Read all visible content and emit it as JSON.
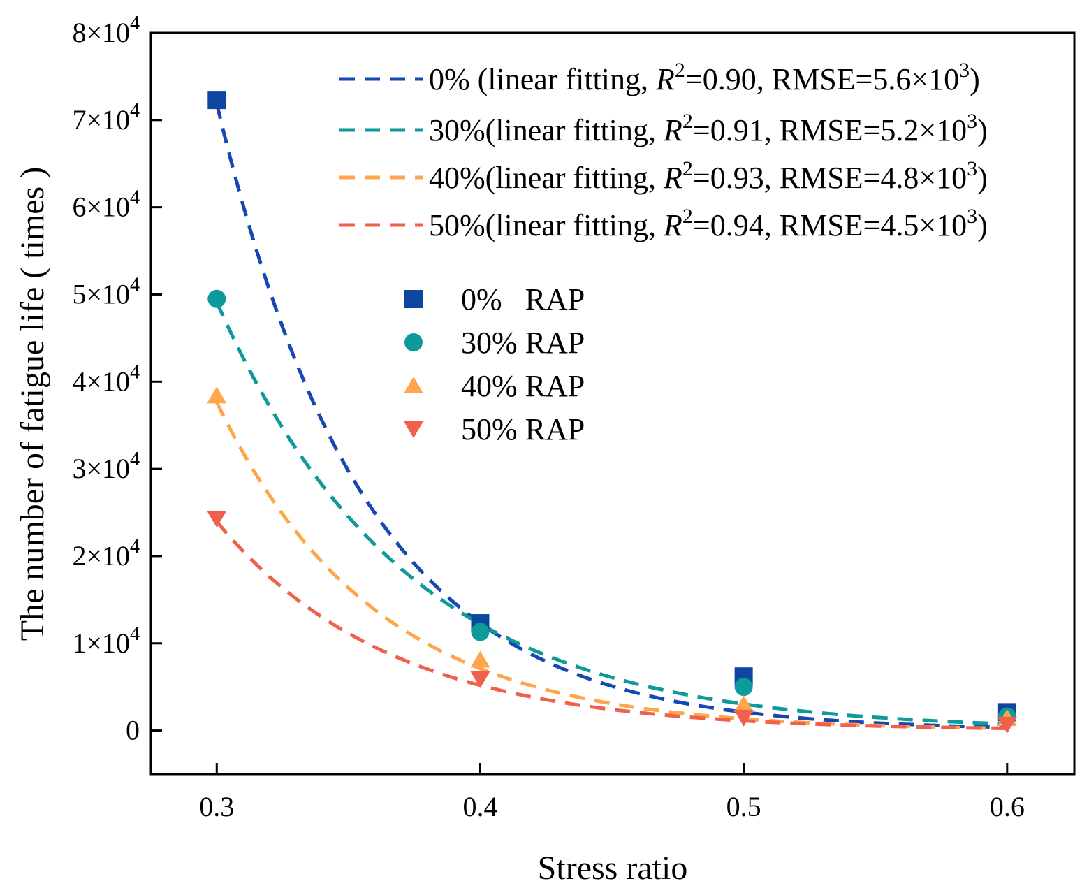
{
  "chart_data": {
    "type": "scatter",
    "xlabel": "Stress ratio",
    "ylabel": "The number of fatigue life ( times )",
    "xlim": [
      0.275,
      0.6255
    ],
    "ylim": [
      -5000,
      80000
    ],
    "x_ticks": [
      0.3,
      0.4,
      0.5,
      0.6
    ],
    "x_tick_labels": [
      "0.3",
      "0.4",
      "0.5",
      "0.6"
    ],
    "y_ticks": [
      0,
      10000,
      20000,
      30000,
      40000,
      50000,
      60000,
      70000,
      80000
    ],
    "y_tick_labels": [
      "0",
      "1×10",
      "2×10",
      "3×10",
      "4×10",
      "5×10",
      "6×10",
      "7×10",
      "8×10"
    ],
    "y_tick_exponent": "4",
    "grid": false,
    "x": [
      0.3,
      0.4,
      0.5,
      0.6
    ],
    "series": [
      {
        "name": "0%   RAP",
        "marker": "square",
        "color": "#0D47A1",
        "values": [
          72300,
          12300,
          6200,
          2100
        ],
        "fit": {
          "a": 72000,
          "b": 0.2999,
          "c": 0.05666,
          "color": "#1547B5"
        },
        "fit_label": {
          "pre": "0% (linear fitting, ",
          "r_symbol": "R",
          "r_exp": "2",
          "mid": "=0.90, RMSE=5.6×10",
          "rmse_exp": "3",
          "post": ")"
        }
      },
      {
        "name": "30% RAP",
        "marker": "circle",
        "color": "#0E9A9A",
        "values": [
          49500,
          11300,
          5000,
          1600
        ],
        "fit": {
          "a": 49200,
          "b": 0.2999,
          "c": 0.07185,
          "color": "#0E9A9A"
        },
        "fit_label": {
          "pre": "30%(linear fitting, ",
          "r_symbol": "R",
          "r_exp": "2",
          "mid": "=0.91, RMSE=5.2×10",
          "rmse_exp": "3",
          "post": ")"
        }
      },
      {
        "name": "40% RAP",
        "marker": "triangle-up",
        "color": "#FFA64D",
        "values": [
          38400,
          8100,
          3000,
          1400
        ],
        "fit": {
          "a": 37700,
          "b": 0.2999,
          "c": 0.06,
          "color": "#FFA64D"
        },
        "fit_label": {
          "pre": "40%(linear fitting, ",
          "r_symbol": "R",
          "r_exp": "2",
          "mid": "=0.93, RMSE=4.8×10",
          "rmse_exp": "3",
          "post": ")"
        }
      },
      {
        "name": "50% RAP",
        "marker": "triangle-down",
        "color": "#F0604D",
        "values": [
          24300,
          5900,
          1500,
          700
        ],
        "fit": {
          "a": 24000,
          "b": 0.2999,
          "c": 0.06533,
          "color": "#F0604D"
        },
        "fit_label": {
          "pre": "50%(linear fitting, ",
          "r_symbol": "R",
          "r_exp": "2",
          "mid": "=0.94, RMSE=4.5×10",
          "rmse_exp": "3",
          "post": ")"
        }
      }
    ],
    "fit_legend_position": "top-right",
    "marker_legend_position": "center"
  }
}
